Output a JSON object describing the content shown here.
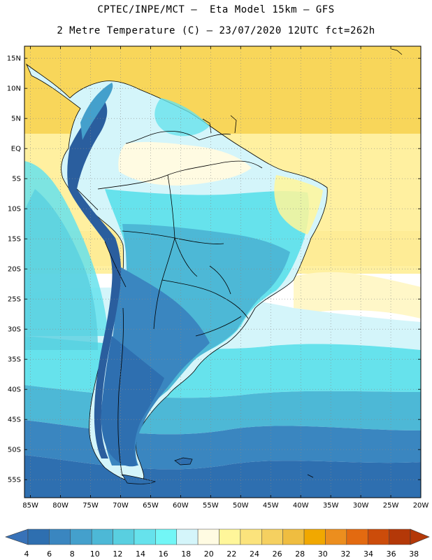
{
  "header": {
    "line1": "CPTEC/INPE/MCT –  Eta Model 15km – GFS",
    "line2": "2 Metre Temperature (C) – 23/07/2020 12UTC fct=262h"
  },
  "map": {
    "lat_labels": [
      "15N",
      "10N",
      "5N",
      "EQ",
      "5S",
      "10S",
      "15S",
      "20S",
      "25S",
      "30S",
      "35S",
      "40S",
      "45S",
      "50S",
      "55S"
    ],
    "lon_labels": [
      "85W",
      "80W",
      "75W",
      "70W",
      "65W",
      "60W",
      "55W",
      "50W",
      "45W",
      "40W",
      "35W",
      "30W",
      "25W",
      "20W"
    ],
    "lat_range": [
      17,
      -58
    ],
    "lon_range": [
      -86,
      -20
    ],
    "grid": true
  },
  "colorbar": {
    "labels": [
      "4",
      "6",
      "8",
      "10",
      "12",
      "14",
      "16",
      "18",
      "20",
      "22",
      "24",
      "26",
      "28",
      "30",
      "32",
      "34",
      "36",
      "38"
    ],
    "colors": [
      "#2e6fb0",
      "#3a86c0",
      "#44a0cc",
      "#4db8d6",
      "#59cfe0",
      "#66e2ec",
      "#72f6f6",
      "#d4f5fa",
      "#fffbe2",
      "#fff69a",
      "#fbe37c",
      "#f5d060",
      "#efbd40",
      "#f1a800",
      "#ec8e1e",
      "#e36a10",
      "#cc4c0a",
      "#b43808"
    ],
    "low_arrow_color": "#3872b8",
    "high_arrow_color": "#b43808"
  },
  "colors": {
    "ocean_equatorial": "#f8d65a",
    "ocean_tropical": "#fff0a0",
    "ocean_subtropical": "#d4f5fa",
    "ocean_midlat": "#66e2ec",
    "ocean_south": "#2e6fb0",
    "land_north": "#d4f5fa",
    "land_central": "#4db8d6",
    "land_south": "#2e6fb0",
    "andes": "#2a5e9e",
    "border": "#000000"
  }
}
